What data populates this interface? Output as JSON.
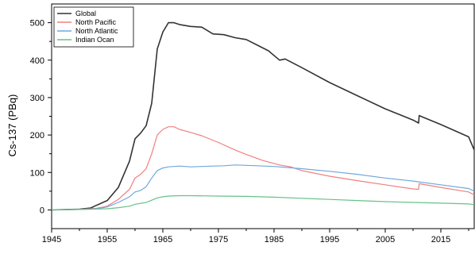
{
  "chart_data": {
    "type": "line",
    "title": "",
    "xlabel": "",
    "ylabel": "Cs-137 (PBq)",
    "xlim": [
      1945,
      2021
    ],
    "ylim": [
      -50,
      550
    ],
    "x_ticks": [
      1945,
      1955,
      1965,
      1975,
      1985,
      1995,
      2005,
      2015
    ],
    "y_ticks": [
      0,
      100,
      200,
      300,
      400,
      500
    ],
    "grid": false,
    "legend_position": "top-left",
    "series": [
      {
        "name": "Global",
        "color": "#333333",
        "points": [
          [
            1945,
            0
          ],
          [
            1950,
            2
          ],
          [
            1952,
            5
          ],
          [
            1953,
            12
          ],
          [
            1955,
            25
          ],
          [
            1957,
            60
          ],
          [
            1958,
            95
          ],
          [
            1959,
            130
          ],
          [
            1960,
            190
          ],
          [
            1961,
            205
          ],
          [
            1962,
            225
          ],
          [
            1963,
            285
          ],
          [
            1964,
            430
          ],
          [
            1965,
            475
          ],
          [
            1966,
            500
          ],
          [
            1967,
            500
          ],
          [
            1968,
            495
          ],
          [
            1970,
            490
          ],
          [
            1972,
            488
          ],
          [
            1974,
            470
          ],
          [
            1976,
            468
          ],
          [
            1978,
            460
          ],
          [
            1980,
            455
          ],
          [
            1982,
            440
          ],
          [
            1984,
            425
          ],
          [
            1986,
            400
          ],
          [
            1987,
            403
          ],
          [
            1990,
            380
          ],
          [
            1995,
            340
          ],
          [
            2000,
            305
          ],
          [
            2005,
            270
          ],
          [
            2010,
            240
          ],
          [
            2011,
            232
          ],
          [
            2011.1,
            252
          ],
          [
            2015,
            228
          ],
          [
            2020,
            195
          ],
          [
            2021,
            160
          ]
        ]
      },
      {
        "name": "North Pacific",
        "color": "#f08080",
        "points": [
          [
            1945,
            0
          ],
          [
            1950,
            1
          ],
          [
            1953,
            4
          ],
          [
            1955,
            10
          ],
          [
            1957,
            28
          ],
          [
            1959,
            55
          ],
          [
            1960,
            85
          ],
          [
            1961,
            95
          ],
          [
            1962,
            110
          ],
          [
            1963,
            150
          ],
          [
            1964,
            200
          ],
          [
            1965,
            215
          ],
          [
            1966,
            222
          ],
          [
            1967,
            222
          ],
          [
            1968,
            215
          ],
          [
            1970,
            207
          ],
          [
            1972,
            198
          ],
          [
            1975,
            180
          ],
          [
            1978,
            160
          ],
          [
            1980,
            148
          ],
          [
            1983,
            132
          ],
          [
            1986,
            120
          ],
          [
            1988,
            115
          ],
          [
            1990,
            105
          ],
          [
            1995,
            90
          ],
          [
            2000,
            78
          ],
          [
            2005,
            67
          ],
          [
            2010,
            56
          ],
          [
            2011,
            55
          ],
          [
            2011.1,
            70
          ],
          [
            2015,
            60
          ],
          [
            2020,
            48
          ],
          [
            2021,
            40
          ]
        ]
      },
      {
        "name": "North Atlantic",
        "color": "#6fa8dc",
        "points": [
          [
            1945,
            0
          ],
          [
            1950,
            1
          ],
          [
            1953,
            3
          ],
          [
            1955,
            8
          ],
          [
            1957,
            20
          ],
          [
            1959,
            35
          ],
          [
            1960,
            48
          ],
          [
            1961,
            52
          ],
          [
            1962,
            62
          ],
          [
            1963,
            85
          ],
          [
            1964,
            105
          ],
          [
            1965,
            112
          ],
          [
            1966,
            115
          ],
          [
            1968,
            117
          ],
          [
            1970,
            115
          ],
          [
            1972,
            116
          ],
          [
            1974,
            117
          ],
          [
            1976,
            118
          ],
          [
            1978,
            120
          ],
          [
            1980,
            119
          ],
          [
            1982,
            118
          ],
          [
            1985,
            116
          ],
          [
            1990,
            110
          ],
          [
            1995,
            103
          ],
          [
            2000,
            95
          ],
          [
            2005,
            85
          ],
          [
            2010,
            77
          ],
          [
            2015,
            67
          ],
          [
            2020,
            57
          ],
          [
            2021,
            50
          ]
        ]
      },
      {
        "name": "Indian Ocan",
        "color": "#66c28a",
        "points": [
          [
            1945,
            0
          ],
          [
            1950,
            1
          ],
          [
            1955,
            3
          ],
          [
            1957,
            6
          ],
          [
            1959,
            10
          ],
          [
            1960,
            15
          ],
          [
            1962,
            20
          ],
          [
            1963,
            26
          ],
          [
            1964,
            32
          ],
          [
            1965,
            35
          ],
          [
            1966,
            37
          ],
          [
            1968,
            38
          ],
          [
            1970,
            38
          ],
          [
            1975,
            37
          ],
          [
            1980,
            36
          ],
          [
            1985,
            34
          ],
          [
            1990,
            31
          ],
          [
            1995,
            28
          ],
          [
            2000,
            25
          ],
          [
            2005,
            22
          ],
          [
            2010,
            20
          ],
          [
            2015,
            18
          ],
          [
            2020,
            16
          ],
          [
            2021,
            14
          ]
        ]
      }
    ]
  }
}
